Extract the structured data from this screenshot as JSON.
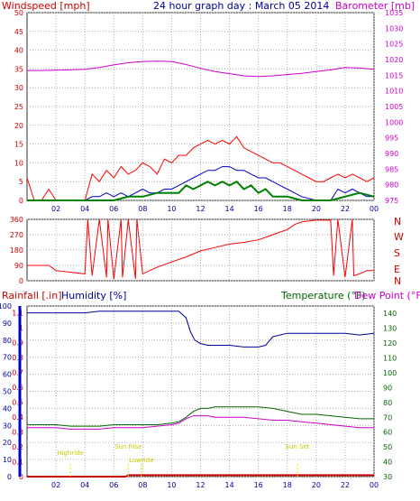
{
  "header": {
    "windspeed_label": "Windspeed [mph]",
    "title": "24 hour graph day : March 05 2014",
    "barometer_label": "Barometer [mb]"
  },
  "colors": {
    "wind": "#ff0000",
    "wind_avg": "#0000cc",
    "wind_green": "#008000",
    "barometer": "#cc00cc",
    "direction": "#ff0000",
    "rain": "#cc0000",
    "humidity": "#000099",
    "temperature": "#006600",
    "dewpoint": "#cc00cc",
    "events": "#e6e600",
    "grid": "#aaaaaa",
    "axis": "#333333"
  },
  "x_axis": {
    "tick_labels": [
      "02",
      "04",
      "06",
      "08",
      "10",
      "12",
      "14",
      "16",
      "18",
      "20",
      "22",
      "00"
    ],
    "range_hours": [
      0,
      24
    ]
  },
  "chart_data": [
    {
      "type": "line",
      "name": "windspeed-barometer",
      "ylabel_left": "Windspeed [mph]",
      "ylabel_right": "Barometer [mb]",
      "left_ticks": [
        "0",
        "5",
        "10",
        "15",
        "20",
        "25",
        "30",
        "35",
        "40",
        "45",
        "50"
      ],
      "right_ticks": [
        "975",
        "980",
        "985",
        "990",
        "995",
        "1000",
        "1005",
        "1010",
        "1015",
        "1020",
        "1025",
        "1030",
        "1035"
      ],
      "ylim_left": [
        0,
        50
      ],
      "ylim_right": [
        975,
        1035
      ],
      "series": [
        {
          "key": "gust",
          "x": [
            0,
            0.5,
            1,
            1.5,
            2,
            3,
            4,
            4.5,
            5,
            5.5,
            6,
            6.5,
            7,
            7.5,
            8,
            8.5,
            9,
            9.5,
            10,
            10.5,
            11,
            11.5,
            12,
            12.5,
            13,
            13.5,
            14,
            14.5,
            15,
            15.5,
            16,
            16.5,
            17,
            17.5,
            18,
            18.5,
            19,
            19.5,
            20,
            20.5,
            21,
            21.5,
            22,
            22.5,
            23,
            23.5,
            24
          ],
          "y": [
            6,
            0,
            0,
            3,
            0,
            0,
            0,
            7,
            5,
            8,
            6,
            9,
            7,
            8,
            10,
            9,
            7,
            11,
            10,
            12,
            12,
            14,
            15,
            16,
            15,
            16,
            15,
            17,
            14,
            13,
            12,
            11,
            10,
            10,
            9,
            8,
            7,
            6,
            5,
            5,
            6,
            7,
            6,
            7,
            6,
            5,
            6
          ]
        },
        {
          "key": "average",
          "x": [
            0,
            4,
            4.5,
            5,
            5.5,
            6,
            6.5,
            7,
            7.5,
            8,
            8.5,
            9,
            9.5,
            10,
            10.5,
            11,
            11.5,
            12,
            12.5,
            13,
            13.5,
            14,
            14.5,
            15,
            15.5,
            16,
            16.5,
            17,
            17.5,
            18,
            18.5,
            19,
            20,
            21,
            21.5,
            22,
            22.5,
            23,
            23.5,
            24
          ],
          "y": [
            0,
            0,
            1,
            1,
            2,
            1,
            2,
            1,
            2,
            3,
            2,
            2,
            3,
            3,
            4,
            5,
            6,
            7,
            8,
            8,
            9,
            9,
            8,
            8,
            7,
            6,
            6,
            5,
            4,
            3,
            2,
            1,
            0,
            0,
            3,
            2,
            3,
            2,
            1,
            1
          ]
        },
        {
          "key": "minimum",
          "x": [
            0,
            6,
            7,
            8,
            9,
            10,
            10.5,
            11,
            11.5,
            12,
            12.5,
            13,
            13.5,
            14,
            14.5,
            15,
            15.5,
            16,
            16.5,
            17,
            18,
            19,
            20,
            21,
            22,
            23,
            24
          ],
          "y": [
            0,
            0,
            1,
            1,
            2,
            2,
            2,
            4,
            3,
            4,
            5,
            4,
            5,
            4,
            5,
            3,
            4,
            2,
            3,
            1,
            1,
            0,
            0,
            0,
            1,
            2,
            1
          ]
        },
        {
          "key": "barometer",
          "x": [
            0,
            1,
            2,
            3,
            4,
            5,
            6,
            7,
            8,
            9,
            10,
            11,
            12,
            13,
            14,
            15,
            16,
            17,
            18,
            19,
            20,
            21,
            22,
            23,
            24
          ],
          "y": [
            1016.5,
            1016.5,
            1016.6,
            1016.7,
            1016.9,
            1017.5,
            1018.3,
            1019.0,
            1019.4,
            1019.5,
            1019.4,
            1018.4,
            1017.2,
            1016.2,
            1015.5,
            1014.8,
            1014.6,
            1014.8,
            1015.2,
            1015.6,
            1016.2,
            1016.7,
            1017.5,
            1017.3,
            1016.9
          ]
        }
      ]
    },
    {
      "type": "line",
      "name": "wind-direction",
      "left_ticks": [
        "0",
        "90",
        "180",
        "270",
        "360"
      ],
      "right_labels": [
        "N",
        "W",
        "S",
        "E",
        "N"
      ],
      "ylim": [
        0,
        360
      ],
      "series": [
        {
          "key": "direction",
          "x": [
            0,
            1.5,
            2,
            4,
            4.2,
            4.5,
            5,
            5.5,
            5.6,
            6,
            6.5,
            6.6,
            7,
            7.5,
            7.6,
            8,
            8.5,
            9,
            10,
            11,
            12,
            13,
            14,
            15,
            16,
            17,
            18,
            18.5,
            19,
            20,
            21,
            21.2,
            21.5,
            22,
            22.5,
            22.6,
            23,
            23.5,
            24
          ],
          "y": [
            90,
            90,
            60,
            40,
            360,
            30,
            360,
            20,
            360,
            10,
            360,
            20,
            360,
            10,
            360,
            40,
            60,
            80,
            110,
            140,
            175,
            195,
            215,
            225,
            240,
            270,
            300,
            330,
            345,
            355,
            355,
            30,
            360,
            20,
            360,
            30,
            40,
            60,
            60
          ]
        }
      ]
    },
    {
      "type": "line",
      "name": "rain-humidity-temperature",
      "ylabel_rain": "Rainfall [.in]",
      "ylabel_humidity": "Humidity [%]",
      "ylabel_temp": "Temperature (°F)",
      "ylabel_dew": "Dew Point (°F)",
      "humidity_ticks": [
        "0",
        "10",
        "20",
        "30",
        "40",
        "50",
        "60",
        "70",
        "80",
        "90",
        "100"
      ],
      "rain_ticks": [
        "0",
        "0.1",
        "0.2",
        "0.3",
        "0.4",
        "0.5",
        "0.6",
        "0.7",
        "0.8",
        "0.9",
        "1",
        "1.1"
      ],
      "temp_ticks": [
        "30",
        "40",
        "50",
        "60",
        "70",
        "80",
        "90",
        "100",
        "110",
        "120",
        "130",
        "140"
      ],
      "ylim_humidity": [
        0,
        100
      ],
      "ylim_temp": [
        30,
        145
      ],
      "series": [
        {
          "key": "humidity",
          "x": [
            0,
            1,
            2,
            3,
            4,
            5,
            6,
            7,
            8,
            9,
            10,
            10.5,
            11,
            11.3,
            11.6,
            12,
            12.5,
            13,
            14,
            15,
            16,
            16.5,
            17,
            18,
            19,
            20,
            21,
            22,
            23,
            24
          ],
          "y": [
            96,
            96,
            96,
            96,
            96,
            97,
            97,
            97,
            97,
            97,
            97,
            97,
            93,
            85,
            80,
            78,
            77,
            77,
            77,
            76,
            76,
            77,
            82,
            84,
            84,
            84,
            84,
            84,
            83,
            84
          ]
        },
        {
          "key": "temperature",
          "x": [
            0,
            1,
            2,
            3,
            4,
            5,
            6,
            7,
            8,
            9,
            10,
            10.5,
            11,
            11.5,
            12,
            12.5,
            13,
            14,
            15,
            16,
            17,
            18,
            19,
            20,
            21,
            22,
            23,
            24
          ],
          "y": [
            65,
            65,
            65,
            64,
            64,
            64,
            65,
            65,
            65,
            65,
            66,
            67,
            70,
            74,
            76,
            76,
            77,
            77,
            77,
            77,
            76,
            74,
            72,
            72,
            71,
            70,
            69,
            69
          ]
        },
        {
          "key": "dewpoint",
          "x": [
            0,
            1,
            2,
            3,
            4,
            5,
            6,
            7,
            8,
            9,
            10,
            10.5,
            11,
            11.5,
            12,
            12.5,
            13,
            14,
            15,
            16,
            17,
            18,
            19,
            20,
            21,
            22,
            23,
            24
          ],
          "y": [
            63,
            63,
            63,
            62,
            62,
            62,
            63,
            63,
            63,
            64,
            65,
            66,
            69,
            71,
            71,
            71,
            70,
            70,
            70,
            69,
            68,
            68,
            67,
            66,
            65,
            64,
            63,
            63
          ]
        },
        {
          "key": "rain",
          "x": [
            0,
            6.8,
            7,
            24
          ],
          "y": [
            0,
            0,
            0.01,
            0.01
          ]
        }
      ],
      "events": [
        {
          "label": "Highride",
          "x": 3.0
        },
        {
          "label": "Sun Rise",
          "x": 7.0
        },
        {
          "label": "Lowride",
          "x": 7.9
        },
        {
          "label": "Sun Set",
          "x": 18.7
        }
      ]
    }
  ]
}
